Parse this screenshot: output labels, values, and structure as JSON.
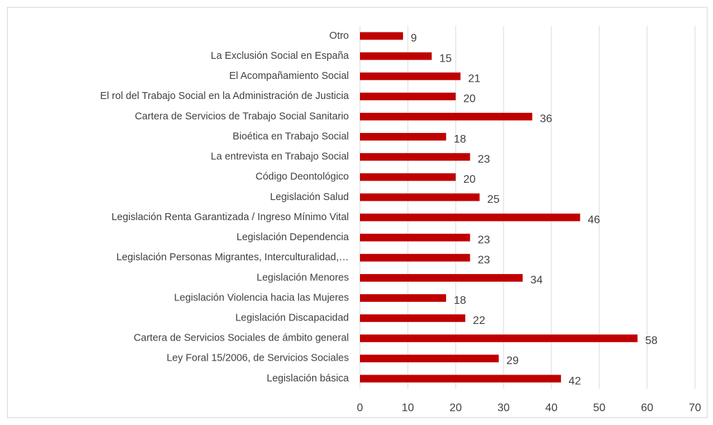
{
  "chart_data": {
    "type": "bar",
    "orientation": "horizontal",
    "categories": [
      "Otro",
      "La Exclusión Social en España",
      "El Acompañamiento Social",
      "El rol del Trabajo Social en la Administración de Justicia",
      "Cartera de Servicios de Trabajo Social Sanitario",
      "Bioética en Trabajo Social",
      "La entrevista en Trabajo Social",
      "Código Deontológico",
      "Legislación Salud",
      "Legislación Renta Garantizada / Ingreso Mínimo Vital",
      "Legislación Dependencia",
      "Legislación Personas Migrantes, Interculturalidad,…",
      "Legislación Menores",
      "Legislación Violencia hacia las Mujeres",
      "Legislación Discapacidad",
      "Cartera de Servicios Sociales de ámbito general",
      "Ley Foral 15/2006, de Servicios Sociales",
      "Legislación básica"
    ],
    "values": [
      9,
      15,
      21,
      20,
      36,
      18,
      23,
      20,
      25,
      46,
      23,
      23,
      34,
      18,
      22,
      58,
      29,
      42
    ],
    "color": "#c00000",
    "xlim": [
      0,
      70
    ],
    "xticks": [
      0,
      10,
      20,
      30,
      40,
      50,
      60,
      70
    ],
    "grid": true
  }
}
